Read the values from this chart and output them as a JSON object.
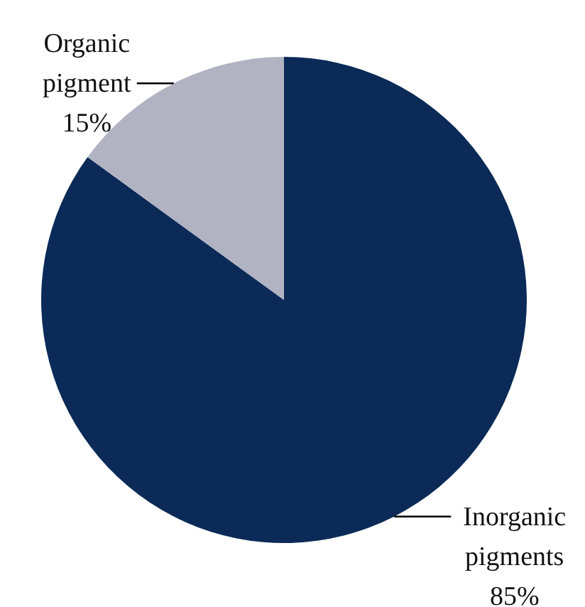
{
  "chart_data": {
    "type": "pie",
    "categories": [
      "Inorganic pigments",
      "Organic pigment"
    ],
    "values": [
      85,
      15
    ],
    "colors": [
      "#0b2a57",
      "#b1b3c3"
    ],
    "value_labels": [
      "85%",
      "15%"
    ]
  }
}
